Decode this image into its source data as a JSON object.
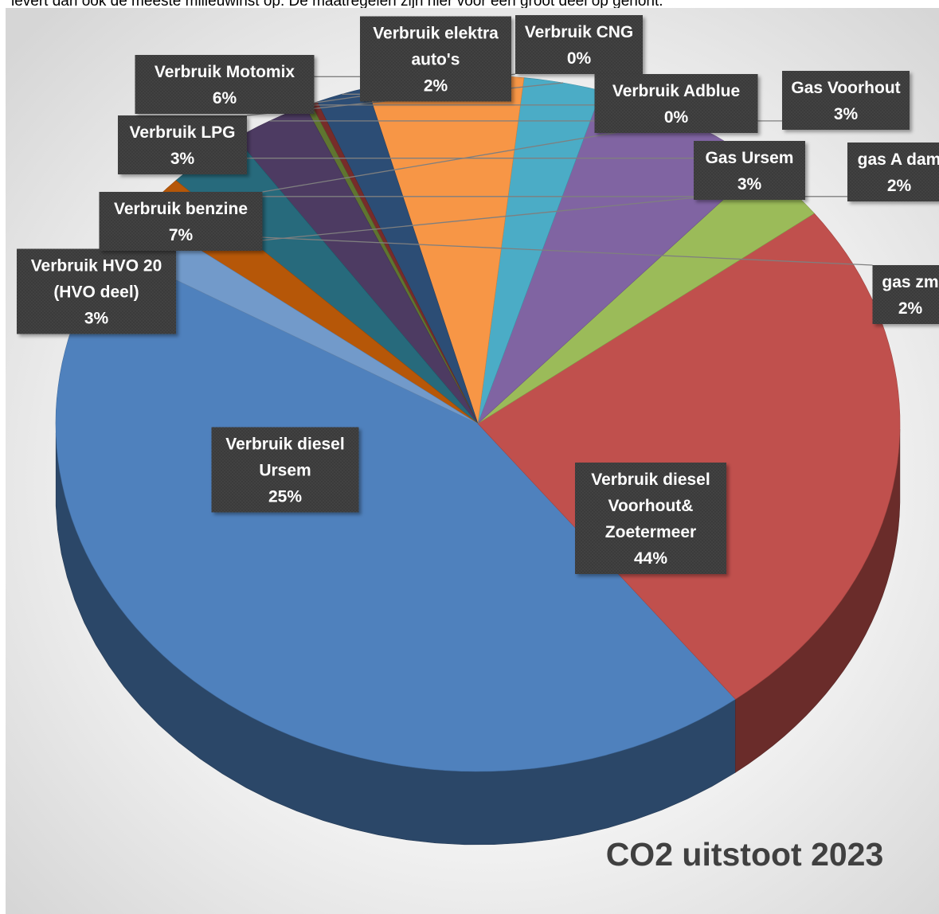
{
  "page": {
    "top_text": "levert dan ook de meeste milieuwinst op. De maatregelen zijn hier voor een groot deel op gehoñt."
  },
  "chart_data": {
    "type": "pie",
    "title": "CO2 uitstoot 2023",
    "style": "3d-exploded-pie",
    "slices": [
      {
        "label": "Verbruik diesel Voorhout& Zoetermeer",
        "lines": [
          "Verbruik diesel",
          "Voorhout&",
          "Zoetermeer"
        ],
        "value": 44,
        "text": "44%",
        "color": "#4F81BD"
      },
      {
        "label": "Verbruik diesel Ursem",
        "lines": [
          "Verbruik diesel",
          "Ursem"
        ],
        "value": 25,
        "text": "25%",
        "color": "#C0504D"
      },
      {
        "label": "Verbruik HVO 20 (HVO deel)",
        "lines": [
          "Verbruik HVO 20",
          "(HVO deel)"
        ],
        "value": 3,
        "text": "3%",
        "color": "#9BBB59"
      },
      {
        "label": "Verbruik benzine",
        "lines": [
          "Verbruik benzine"
        ],
        "value": 7,
        "text": "7%",
        "color": "#8064A2"
      },
      {
        "label": "Verbruik LPG",
        "lines": [
          "Verbruik LPG"
        ],
        "value": 3,
        "text": "3%",
        "color": "#4BACC6"
      },
      {
        "label": "Verbruik Motomix",
        "lines": [
          "Verbruik Motomix"
        ],
        "value": 6,
        "text": "6%",
        "color": "#F79646"
      },
      {
        "label": "Verbruik elektra auto's",
        "lines": [
          "Verbruik elektra",
          "auto's"
        ],
        "value": 2,
        "text": "2%",
        "color": "#2C4D75"
      },
      {
        "label": "Verbruik CNG",
        "lines": [
          "Verbruik CNG"
        ],
        "value": 0,
        "text": "0%",
        "color": "#772C2A"
      },
      {
        "label": "Verbruik Adblue",
        "lines": [
          "Verbruik Adblue"
        ],
        "value": 0,
        "text": "0%",
        "color": "#5F7530"
      },
      {
        "label": "Gas Voorhout",
        "lines": [
          "Gas Voorhout"
        ],
        "value": 3,
        "text": "3%",
        "color": "#4D3B62"
      },
      {
        "label": "Gas Ursem",
        "lines": [
          "Gas Ursem"
        ],
        "value": 3,
        "text": "3%",
        "color": "#276A7C"
      },
      {
        "label": "gas A dam",
        "lines": [
          "gas A dam"
        ],
        "value": 2,
        "text": "2%",
        "color": "#B65708"
      },
      {
        "label": "gas zm",
        "lines": [
          "gas zm"
        ],
        "value": 2,
        "text": "2%",
        "color": "#729ACA"
      }
    ]
  }
}
